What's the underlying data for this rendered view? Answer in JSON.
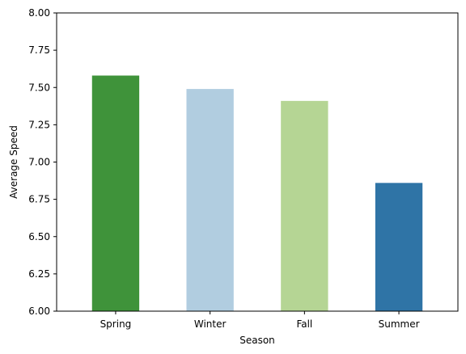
{
  "chart_data": {
    "type": "bar",
    "title": "",
    "xlabel": "Season",
    "ylabel": "Average Speed",
    "categories": [
      "Spring",
      "Winter",
      "Fall",
      "Summer"
    ],
    "values": [
      7.58,
      7.49,
      7.41,
      6.86
    ],
    "colors": [
      "#3f933a",
      "#b1cde0",
      "#b5d594",
      "#2f74a6"
    ],
    "ylim": [
      6.0,
      8.0
    ],
    "yticks": [
      "6.00",
      "6.25",
      "6.50",
      "6.75",
      "7.00",
      "7.25",
      "7.50",
      "7.75",
      "8.00"
    ],
    "grid": false,
    "legend": "none"
  }
}
